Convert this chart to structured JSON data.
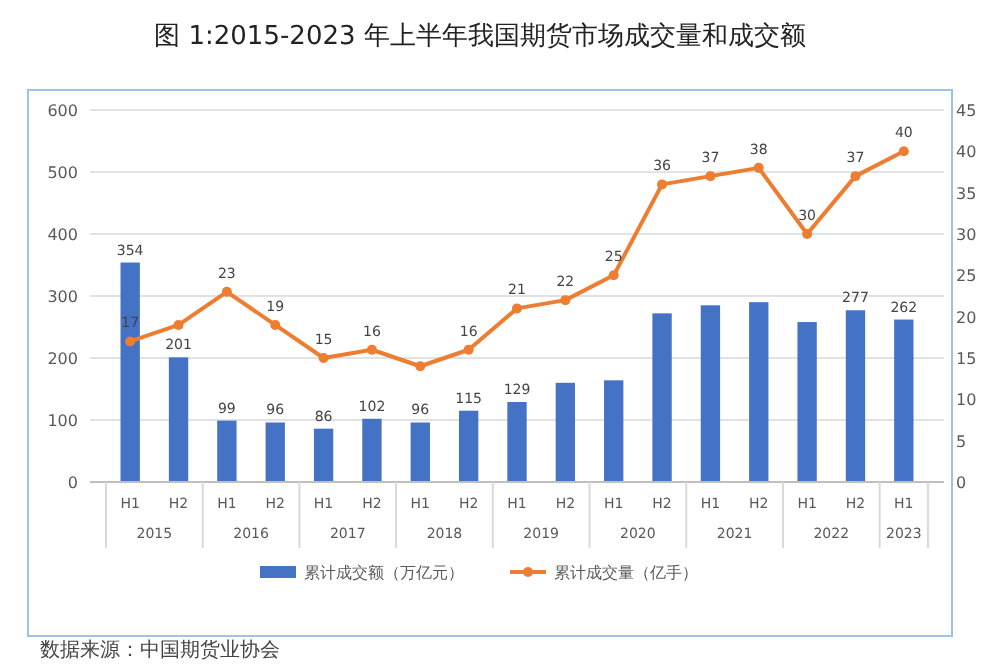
{
  "chart_data": {
    "type": "bar",
    "title": "图 1:2015-2023 年上半年我国期货市场成交量和成交额",
    "categories": [
      "H1",
      "H2",
      "H1",
      "H2",
      "H1",
      "H2",
      "H1",
      "H2",
      "H1",
      "H2",
      "H1",
      "H2",
      "H1",
      "H2",
      "H1",
      "H2",
      "H1"
    ],
    "series": [
      {
        "name": "累计成交额（万亿元）",
        "color": "#4472c4",
        "values": [
          354,
          201,
          99,
          96,
          86,
          102,
          96,
          115,
          129,
          160,
          164,
          272,
          285,
          290,
          258,
          277,
          262
        ],
        "value_labels": [
          "354",
          "201",
          "99",
          "96",
          "86",
          "102",
          "96",
          "115",
          "129",
          null,
          null,
          null,
          null,
          null,
          null,
          "277",
          "262"
        ]
      },
      {
        "name": "累计成交量（亿手）",
        "type": "line",
        "axis": "y2",
        "color": "#ed7d31",
        "marker": "circle",
        "values": [
          17,
          19,
          23,
          19,
          15,
          16,
          14,
          16,
          21,
          22,
          25,
          36,
          37,
          38,
          30,
          37,
          40
        ],
        "value_labels": [
          "17",
          null,
          "23",
          "19",
          "15",
          "16",
          null,
          "16",
          "21",
          "22",
          "25",
          "36",
          "37",
          "38",
          "30",
          "37",
          "40"
        ]
      }
    ],
    "ylim": [
      0,
      600
    ],
    "yticks": [
      0,
      100,
      200,
      300,
      400,
      500,
      600
    ],
    "y2lim": [
      0,
      45
    ],
    "y2ticks": [
      0,
      5,
      10,
      15,
      20,
      25,
      30,
      35,
      40,
      45
    ],
    "grid": "y",
    "legend": "bottom",
    "annotations": [
      "2015",
      "2016",
      "2017",
      "2018",
      "2019",
      "2020",
      "2021",
      "2022",
      "2023",
      "数据来源：中国期货业协会"
    ]
  }
}
